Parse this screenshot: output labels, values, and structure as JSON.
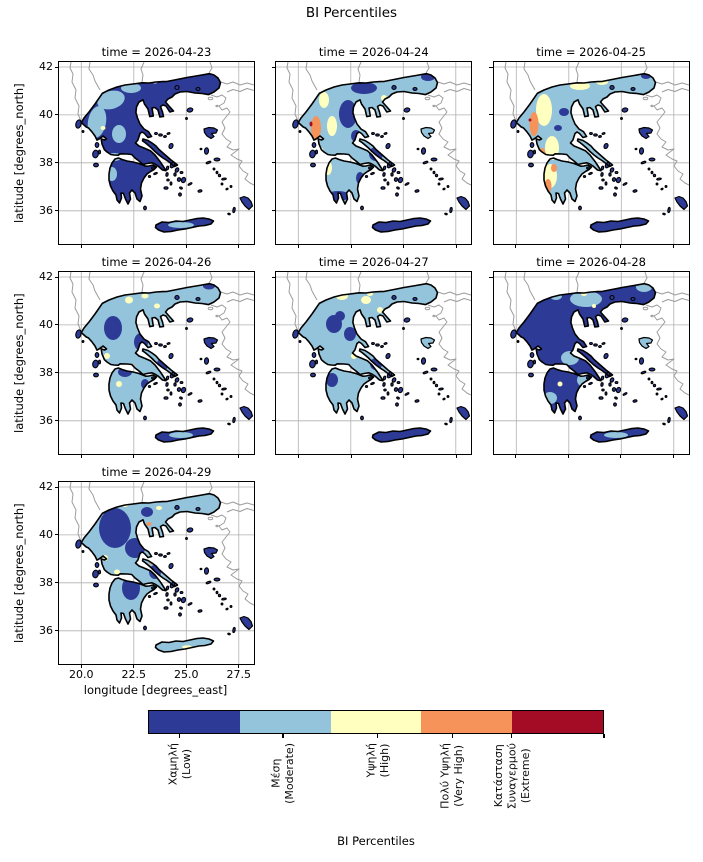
{
  "suptitle": "BI Percentiles",
  "chart_data": {
    "type": "heatmap",
    "subtype": "faceted_categorical_map",
    "region": "Greece",
    "projection": "PlateCarree",
    "grid": true,
    "xlabel": "longitude [degrees_east]",
    "ylabel": "latitude [degrees_north]",
    "x_tick_labels": [
      "20.0",
      "22.5",
      "25.0",
      "27.5"
    ],
    "y_tick_labels": [
      "42",
      "40",
      "38",
      "36"
    ],
    "xlim": [
      18.9,
      28.2
    ],
    "ylim": [
      34.6,
      42.2
    ],
    "facets": [
      {
        "title": "time = 2026-04-23",
        "summary": "Low over most of the mainland and islands; Moderate band along the west; small Very High/Extreme spots near Corfu"
      },
      {
        "title": "time = 2026-04-24",
        "summary": "Moderate dominant; High and Very High along the west coast with Extreme specks; Low patches in centre, north-east and south Peloponnese"
      },
      {
        "title": "time = 2026-04-25",
        "summary": "Moderate dominant with large High areas and Very High strips in the west and Peloponnese; Low spots in the centre and Crete"
      },
      {
        "title": "time = 2026-04-26",
        "summary": "Moderate dominant with Low patches in the west-centre and south; scattered High spots and Very High specks along the northern border"
      },
      {
        "title": "time = 2026-04-27",
        "summary": "Moderate dominant with Low patches; High spots across the north; Very High speck near the Pagasetic gulf and the northern border"
      },
      {
        "title": "time = 2026-04-28",
        "summary": "Low dominant over west, centre and south; Moderate across the north and east Aegean; isolated High/Very High specks"
      },
      {
        "title": "time = 2026-04-29",
        "summary": "Low over the north-west, centre and inner Peloponnese; Moderate elsewhere; High specks and a Very High spot near the Euboean strait"
      }
    ],
    "colorbar": {
      "title": "BI Percentiles",
      "orientation": "horizontal",
      "classes": [
        {
          "label_greek": "Χαμηλή",
          "label_english": "(Low)",
          "color": "#2d3b96"
        },
        {
          "label_greek": "Μέση",
          "label_english": "(Moderate)",
          "color": "#93c4dc"
        },
        {
          "label_greek": "Υψηλή",
          "label_english": "(High)",
          "color": "#ffffbf"
        },
        {
          "label_greek": "Πολύ Υψηλή",
          "label_english": "(Very High)",
          "color": "#f6935a"
        },
        {
          "label_greek": "Κατάσταση\nΣυναγερμού",
          "label_english": "(Extreme)",
          "color": "#a40c26"
        }
      ]
    }
  }
}
